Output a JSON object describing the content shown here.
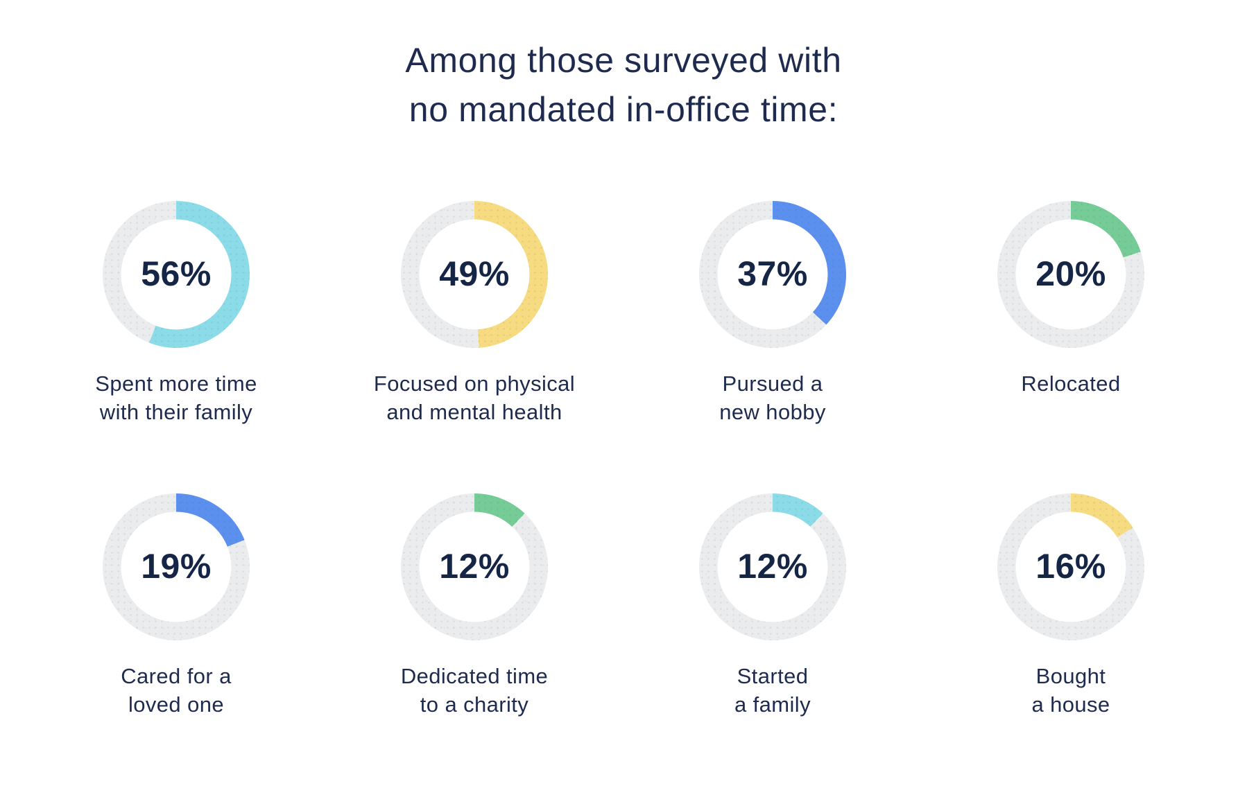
{
  "title": {
    "line1": "Among those surveyed with",
    "line2": "no mandated in-office time:"
  },
  "colors": {
    "navy_title": "#1E2B4E",
    "navy_number": "#152545",
    "track": "#EBECEE",
    "cyan": "#8BDCE8",
    "yellow": "#F7DB80",
    "blue": "#5C90EE",
    "green": "#75CC97"
  },
  "charts": [
    {
      "value": 56,
      "pct_label": "56%",
      "color": "#8BDCE8",
      "color_name": "cyan",
      "label_line1": "Spent more time",
      "label_line2": "with their family"
    },
    {
      "value": 49,
      "pct_label": "49%",
      "color": "#F7DB80",
      "color_name": "yellow",
      "label_line1": "Focused on physical",
      "label_line2": "and mental health"
    },
    {
      "value": 37,
      "pct_label": "37%",
      "color": "#5C90EE",
      "color_name": "blue",
      "label_line1": "Pursued a",
      "label_line2": "new hobby"
    },
    {
      "value": 20,
      "pct_label": "20%",
      "color": "#75CC97",
      "color_name": "green",
      "label_line1": "Relocated",
      "label_line2": ""
    },
    {
      "value": 19,
      "pct_label": "19%",
      "color": "#5C90EE",
      "color_name": "blue",
      "label_line1": "Cared for a",
      "label_line2": "loved one"
    },
    {
      "value": 12,
      "pct_label": "12%",
      "color": "#75CC97",
      "color_name": "green",
      "label_line1": "Dedicated time",
      "label_line2": "to a charity"
    },
    {
      "value": 12,
      "pct_label": "12%",
      "color": "#8BDCE8",
      "color_name": "cyan",
      "label_line1": "Started",
      "label_line2": "a family"
    },
    {
      "value": 16,
      "pct_label": "16%",
      "color": "#F7DB80",
      "color_name": "yellow",
      "label_line1": "Bought",
      "label_line2": "a house"
    }
  ],
  "chart_data": {
    "type": "pie",
    "variant": "donut-ring-grid",
    "title": "Among those surveyed with no mandated in-office time:",
    "unit": "%",
    "start_angle_deg": 0,
    "direction": "clockwise",
    "grid": [
      2,
      4
    ],
    "categories": [
      "Spent more time with their family",
      "Focused on physical and mental health",
      "Pursued a new hobby",
      "Relocated",
      "Cared for a loved one",
      "Dedicated time to a charity",
      "Started a family",
      "Bought a house"
    ],
    "values": [
      56,
      49,
      37,
      20,
      19,
      12,
      12,
      16
    ],
    "slice_colors": [
      "#8BDCE8",
      "#F7DB80",
      "#5C90EE",
      "#75CC97",
      "#5C90EE",
      "#75CC97",
      "#8BDCE8",
      "#F7DB80"
    ],
    "track_color": "#EBECEE",
    "legend": "none"
  }
}
